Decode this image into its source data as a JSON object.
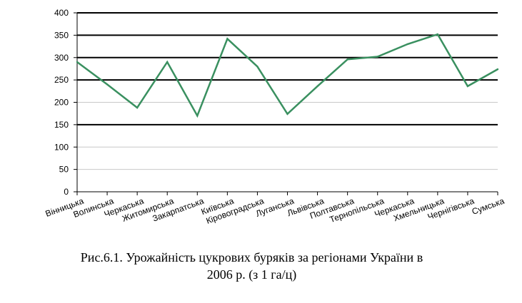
{
  "chart_data": {
    "type": "line",
    "categories": [
      "Вінницька",
      "Волинська",
      "Черкаська",
      "Житомирська",
      "Закарпатська",
      "Київська",
      "Кіровоградська",
      "Луганська",
      "Львівська",
      "Полтавська",
      "Тернопільська",
      "Черкаська",
      "Хмельницька",
      "Чернігівська",
      "Сумська"
    ],
    "series": [
      {
        "values": [
          290,
          240,
          188,
          290,
          170,
          342,
          280,
          174,
          236,
          296,
          302,
          330,
          352,
          236,
          274
        ],
        "color": "#3a9060"
      }
    ],
    "ylim": [
      0,
      400
    ],
    "yticks": [
      0,
      50,
      100,
      150,
      200,
      250,
      300,
      350,
      400
    ],
    "bold_gridlines": [
      150,
      250,
      300,
      350,
      400
    ],
    "grid": true,
    "legend": "none"
  },
  "caption": {
    "line1": "Рис.6.1. Урожайність цукрових буряків за регіонами України в",
    "line2": "2006 р. (з 1 га/ц)"
  }
}
